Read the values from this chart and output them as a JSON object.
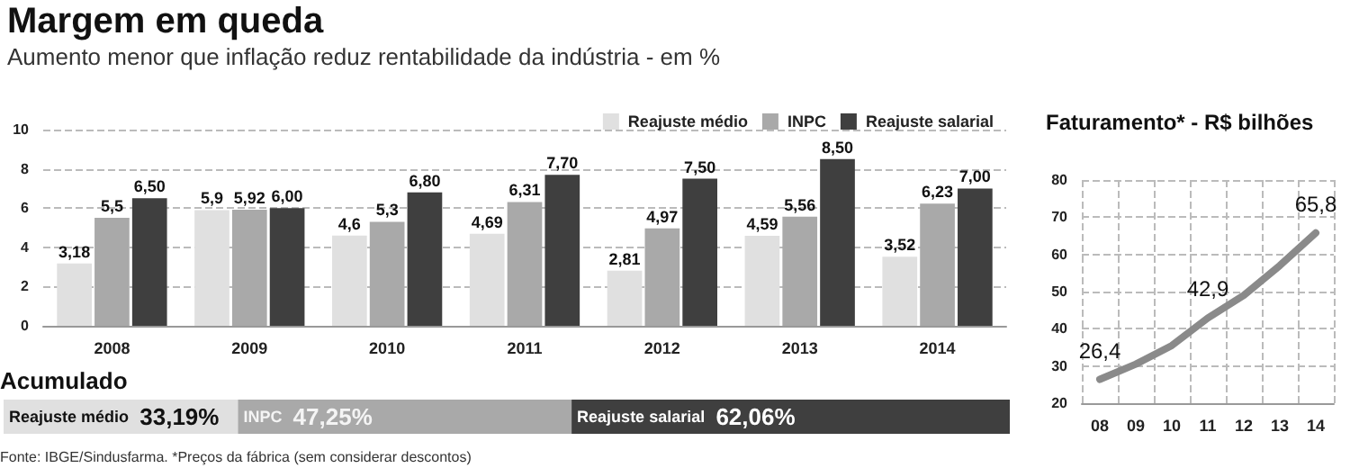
{
  "chart_data": [
    {
      "type": "bar",
      "title": "Margem em queda",
      "subtitle": "Aumento menor que inflação reduz rentabilidade da indústria - em %",
      "categories": [
        "2008",
        "2009",
        "2010",
        "2011",
        "2012",
        "2013",
        "2014"
      ],
      "series": [
        {
          "name": "Reajuste médio",
          "color": "#e0e0e0",
          "values": [
            3.18,
            5.9,
            4.6,
            4.69,
            2.81,
            4.59,
            3.52
          ],
          "value_labels": [
            "3,18",
            "5,9",
            "4,6",
            "4,69",
            "2,81",
            "4,59",
            "3,52"
          ]
        },
        {
          "name": "INPC",
          "color": "#a9a9a9",
          "values": [
            5.5,
            5.92,
            5.3,
            6.31,
            4.97,
            5.56,
            6.23
          ],
          "value_labels": [
            "5,5",
            "5,92",
            "5,3",
            "6,31",
            "4,97",
            "5,56",
            "6,23"
          ]
        },
        {
          "name": "Reajuste salarial",
          "color": "#3f3f3f",
          "values": [
            6.5,
            6.0,
            6.8,
            7.7,
            7.5,
            8.5,
            7.0
          ],
          "value_labels": [
            "6,50",
            "6,00",
            "6,80",
            "7,70",
            "7,50",
            "8,50",
            "7,00"
          ]
        }
      ],
      "ylim": [
        0,
        10
      ],
      "yticks": [
        0,
        2,
        4,
        6,
        8,
        10
      ],
      "grid": "y",
      "legend": "top right"
    },
    {
      "type": "line",
      "title": "Faturamento* - R$ bilhões",
      "categories": [
        "08",
        "09",
        "10",
        "11",
        "12",
        "13",
        "14"
      ],
      "series": [
        {
          "color": "#8a8a8a",
          "values": [
            26.4,
            30.5,
            35.5,
            42.9,
            49,
            57,
            65.8
          ],
          "value_labels": [
            "26,4",
            null,
            null,
            "42,9",
            null,
            null,
            "65,8"
          ]
        }
      ],
      "ylim": [
        20,
        80
      ],
      "yticks": [
        20,
        30,
        40,
        50,
        60,
        70,
        80
      ],
      "grid": true,
      "marker": "none",
      "legend": false
    },
    {
      "type": "bar",
      "title": "Acumulado",
      "orientation": "horizontal",
      "stacked": true,
      "categories": [
        null
      ],
      "tick_labels": false,
      "legend": false,
      "series": [
        {
          "name": "Reajuste médio",
          "color": "#e0e0e0",
          "values": [
            33.19
          ],
          "value_labels": [
            "33,19%"
          ]
        },
        {
          "name": "INPC",
          "color": "#a9a9a9",
          "values": [
            47.25
          ],
          "value_labels": [
            "47,25%"
          ]
        },
        {
          "name": "Reajuste salarial",
          "color": "#3f3f3f",
          "values": [
            62.06
          ],
          "value_labels": [
            "62,06%"
          ]
        }
      ],
      "annotations": [
        "Fonte: IBGE/Sindusfarma. *Preços da fábrica (sem considerar descontos)"
      ]
    }
  ]
}
